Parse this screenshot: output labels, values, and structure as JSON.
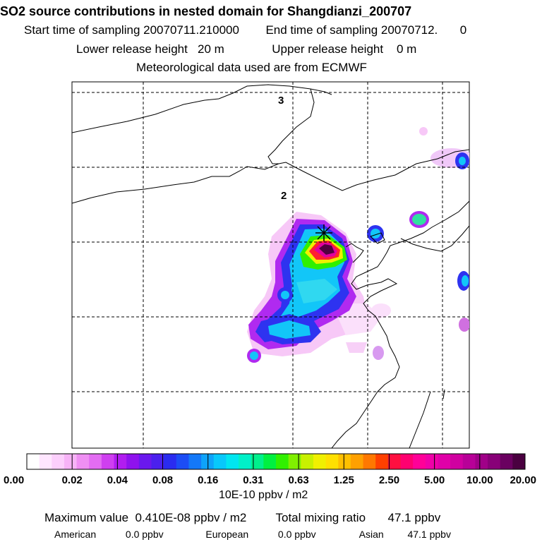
{
  "title": "SO2 source contributions in nested domain for Shangdianzi_200707",
  "sampling": {
    "start_label": "Start time of sampling",
    "start_value": "20070711.210000",
    "end_label": "End time of sampling",
    "end_value": "20070712.",
    "end_suffix": "0"
  },
  "release": {
    "lower_label": "Lower release height",
    "lower_value": "20 m",
    "upper_label": "Upper release height",
    "upper_value": "0 m"
  },
  "met": "Meteorological data used are from ECMWF",
  "map": {
    "grid_labels": [
      "3",
      "2"
    ]
  },
  "legend": {
    "unit": "10E-10 ppbv / m2",
    "tick_labels": [
      "0.00",
      "0.02",
      "0.04",
      "0.08",
      "0.16",
      "0.31",
      "0.63",
      "1.25",
      "2.50",
      "5.00",
      "10.00",
      "20.00"
    ],
    "colors": [
      "#ffffff",
      "#ffe6ff",
      "#fccffc",
      "#f7b3f7",
      "#ef8ff3",
      "#e36cf2",
      "#cf3ff0",
      "#b11df0",
      "#8f12ee",
      "#6a18ee",
      "#4b20ee",
      "#2a2cf0",
      "#1c4df5",
      "#1478f8",
      "#0ea3fa",
      "#08c8fb",
      "#00e6f0",
      "#00f0c8",
      "#00f08c",
      "#00f040",
      "#30f000",
      "#80f000",
      "#c8f000",
      "#f0f000",
      "#ffe000",
      "#ffc000",
      "#ffa000",
      "#ff7800",
      "#ff4000",
      "#ff1040",
      "#ff0070",
      "#ff0098",
      "#f000a8",
      "#e000a8",
      "#d000a0",
      "#b80098",
      "#a00088",
      "#880078",
      "#6a0060",
      "#4a0040"
    ]
  },
  "stats": {
    "max_label": "Maximum value",
    "max_value": "0.410E-08 ppbv / m2",
    "total_label": "Total mixing ratio",
    "total_value": "47.1 ppbv",
    "american_label": "American",
    "american_value": "0.0 ppbv",
    "european_label": "European",
    "european_value": "0.0 ppbv",
    "asian_label": "Asian",
    "asian_value": "47.1 ppbv"
  }
}
